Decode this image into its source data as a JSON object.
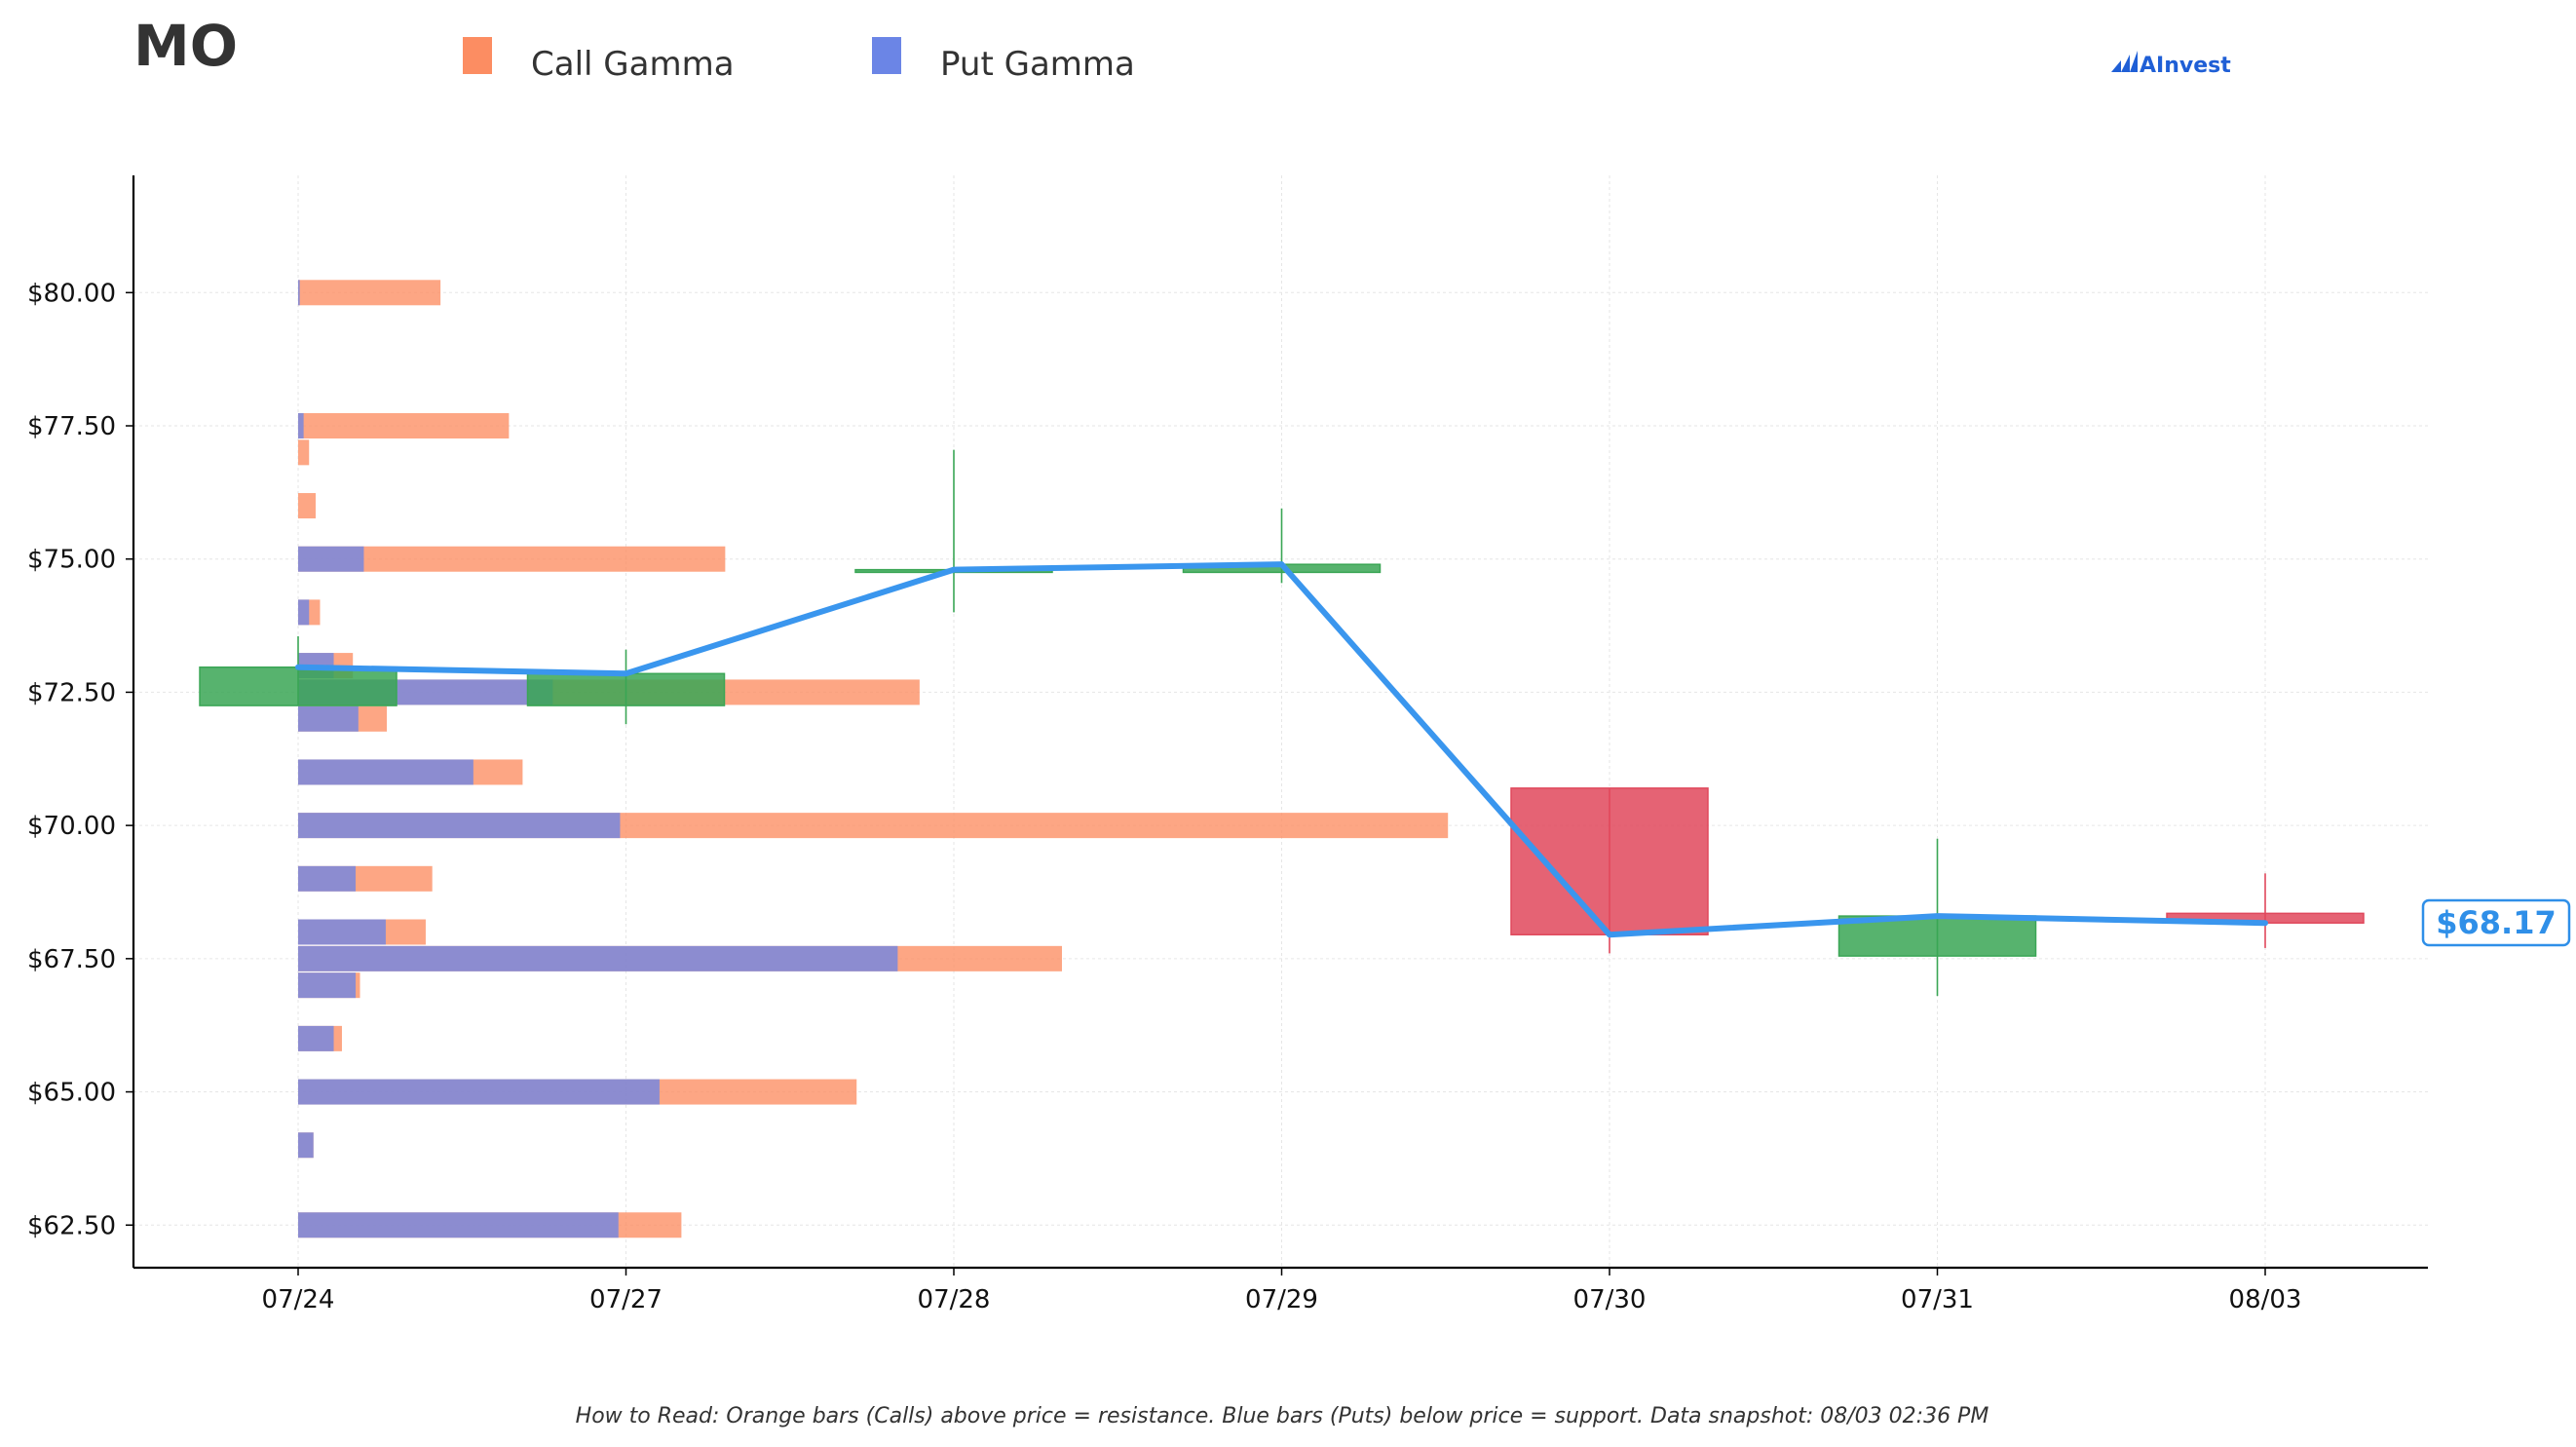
{
  "chart_data": {
    "type": "candlestick",
    "title": "MO",
    "legend": {
      "placement": "top",
      "entries": [
        {
          "name": "Call Gamma",
          "color": "#fc8d62"
        },
        {
          "name": "Put Gamma",
          "color": "#6b85e6"
        }
      ]
    },
    "brand": "AInvest",
    "footnote": "How to Read: Orange bars (Calls) above price = resistance. Blue bars (Puts) below price = support. Data snapshot: 08/03 02:36 PM",
    "x_categories": [
      "07/24",
      "07/27",
      "07/28",
      "07/29",
      "07/30",
      "07/31",
      "08/03"
    ],
    "y_ticks": [
      62.5,
      65.0,
      67.5,
      70.0,
      72.5,
      75.0,
      77.5,
      80.0
    ],
    "y_tick_labels": [
      "$62.50",
      "$65.00",
      "$67.50",
      "$70.00",
      "$72.50",
      "$75.00",
      "$77.50",
      "$80.00"
    ],
    "ylim": [
      61.7,
      82.2
    ],
    "grid": true,
    "colors": {
      "up": "#3aa655",
      "down": "#e0485c",
      "close_line": "#3a96ee",
      "call": "#fc8d62",
      "put": "#6b85e6"
    },
    "candles": [
      {
        "date": "07/24",
        "open": 72.25,
        "high": 73.55,
        "low": 72.25,
        "close": 72.97
      },
      {
        "date": "07/27",
        "open": 72.25,
        "high": 73.3,
        "low": 71.9,
        "close": 72.85
      },
      {
        "date": "07/28",
        "open": 74.75,
        "high": 77.05,
        "low": 74.0,
        "close": 74.8
      },
      {
        "date": "07/29",
        "open": 74.75,
        "high": 75.95,
        "low": 74.55,
        "close": 74.9
      },
      {
        "date": "07/30",
        "open": 70.7,
        "high": 70.7,
        "low": 67.6,
        "close": 67.95
      },
      {
        "date": "07/31",
        "open": 67.55,
        "high": 69.75,
        "low": 66.8,
        "close": 68.3
      },
      {
        "date": "08/03",
        "open": 68.35,
        "high": 69.1,
        "low": 67.7,
        "close": 68.17
      }
    ],
    "current_price_label": "$68.17",
    "gamma_bars": [
      {
        "strike": 80.0,
        "put": 0.03,
        "call": 2.6
      },
      {
        "strike": 77.5,
        "put": 0.1,
        "call": 3.85
      },
      {
        "strike": 77.0,
        "put": 0.0,
        "call": 0.2
      },
      {
        "strike": 76.0,
        "put": 0.0,
        "call": 0.32
      },
      {
        "strike": 75.0,
        "put": 1.2,
        "call": 7.8
      },
      {
        "strike": 74.0,
        "put": 0.2,
        "call": 0.4
      },
      {
        "strike": 73.0,
        "put": 0.65,
        "call": 1.0
      },
      {
        "strike": 72.5,
        "put": 4.65,
        "call": 11.35
      },
      {
        "strike": 72.0,
        "put": 1.1,
        "call": 1.62
      },
      {
        "strike": 71.0,
        "put": 3.2,
        "call": 4.1
      },
      {
        "strike": 70.0,
        "put": 5.88,
        "call": 21.0
      },
      {
        "strike": 69.0,
        "put": 1.05,
        "call": 2.45
      },
      {
        "strike": 68.0,
        "put": 1.6,
        "call": 2.33
      },
      {
        "strike": 67.5,
        "put": 10.95,
        "call": 13.95
      },
      {
        "strike": 67.0,
        "put": 1.05,
        "call": 1.13
      },
      {
        "strike": 66.0,
        "put": 0.65,
        "call": 0.8
      },
      {
        "strike": 65.0,
        "put": 6.6,
        "call": 10.2
      },
      {
        "strike": 64.0,
        "put": 0.28,
        "call": 0.28
      },
      {
        "strike": 62.5,
        "put": 5.85,
        "call": 7.0
      }
    ]
  }
}
